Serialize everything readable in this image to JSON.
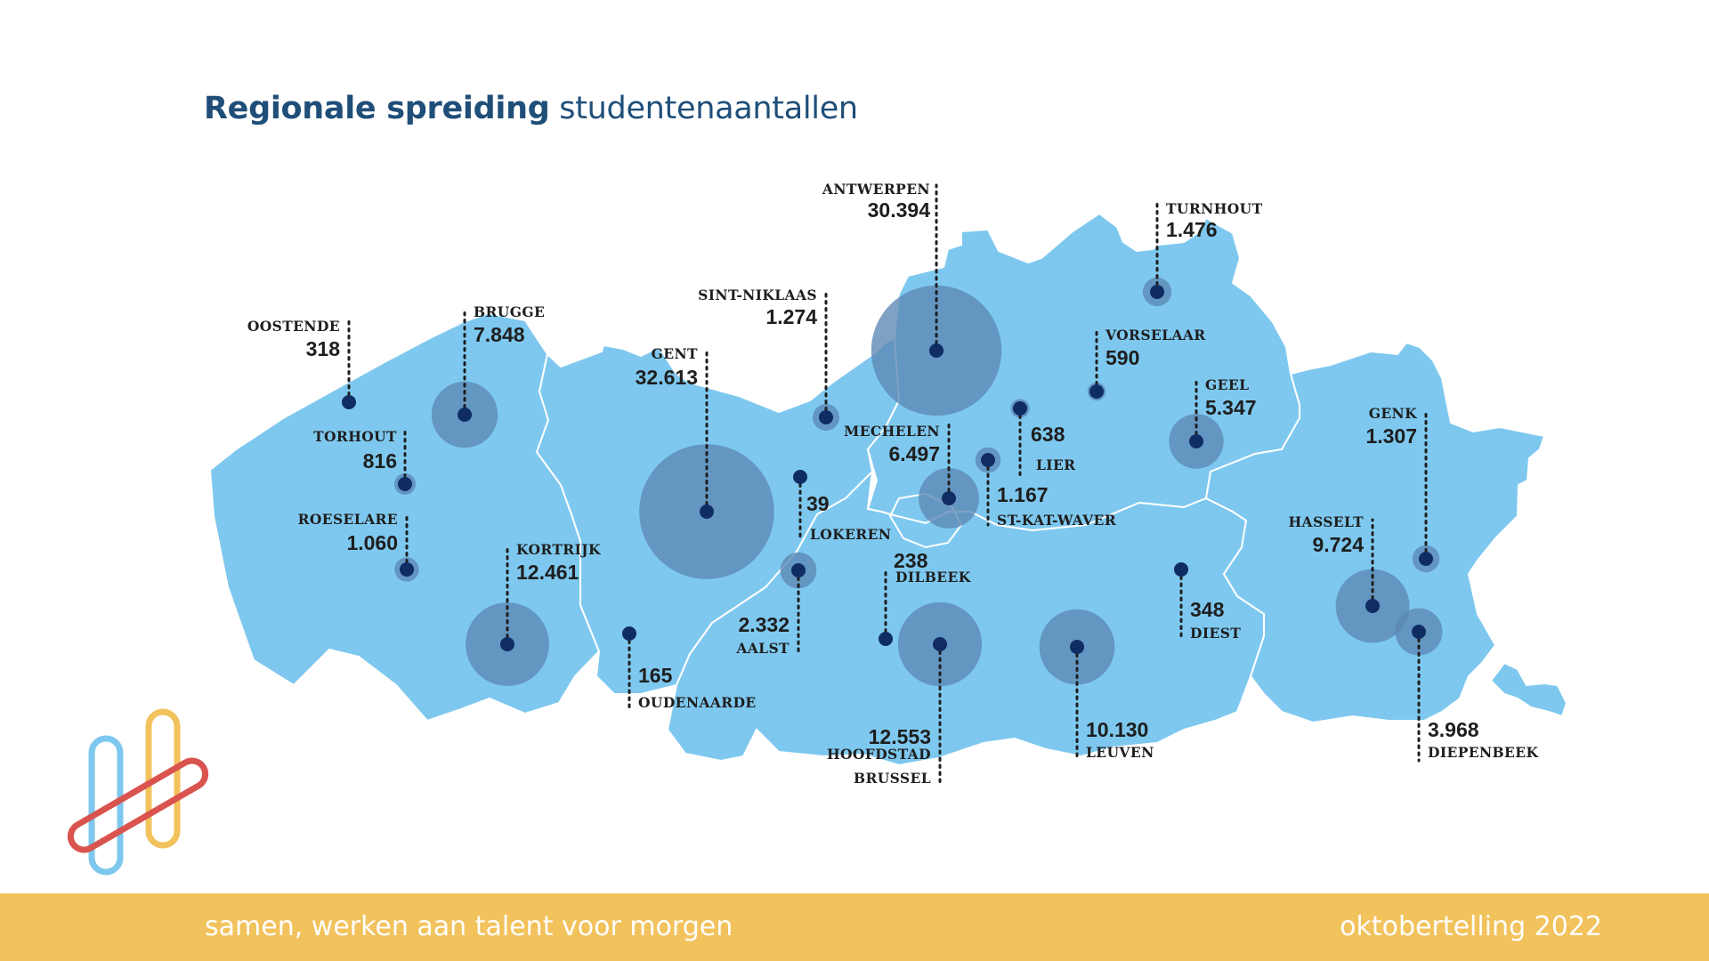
{
  "title": {
    "bold": "Regionale spreiding",
    "rest": "studentenaantallen"
  },
  "footer": {
    "left": "samen, werken aan talent voor morgen",
    "right": "oktobertelling 2022"
  },
  "colors": {
    "land": "#7ec8ef",
    "border": "#ffffff",
    "bubble": "#5b88b4",
    "dot": "#0f2d63",
    "title": "#1f4e79",
    "footer": "#f2c25c"
  },
  "locations": [
    {
      "id": "antwerpen",
      "name": "ANTWERPEN",
      "value": "30.394",
      "students": 30394
    },
    {
      "id": "turnhout",
      "name": "TURNHOUT",
      "value": "1.476",
      "students": 1476
    },
    {
      "id": "sint-niklaas",
      "name": "SINT-NIKLAAS",
      "value": "1.274",
      "students": 1274
    },
    {
      "id": "oostende",
      "name": "OOSTENDE",
      "value": "318",
      "students": 318
    },
    {
      "id": "brugge",
      "name": "BRUGGE",
      "value": "7.848",
      "students": 7848
    },
    {
      "id": "gent",
      "name": "GENT",
      "value": "32.613",
      "students": 32613
    },
    {
      "id": "vorselaar",
      "name": "VORSELAAR",
      "value": "590",
      "students": 590
    },
    {
      "id": "geel",
      "name": "GEEL",
      "value": "5.347",
      "students": 5347
    },
    {
      "id": "genk",
      "name": "GENK",
      "value": "1.307",
      "students": 1307
    },
    {
      "id": "torhout",
      "name": "TORHOUT",
      "value": "816",
      "students": 816
    },
    {
      "id": "mechelen",
      "name": "MECHELEN",
      "value": "6.497",
      "students": 6497
    },
    {
      "id": "lier",
      "name": "LIER",
      "value": "638",
      "students": 638
    },
    {
      "id": "lokeren",
      "name": "LOKEREN",
      "value": "39",
      "students": 39
    },
    {
      "id": "st-kat-waver",
      "name": "ST-KAT-WAVER",
      "value": "1.167",
      "students": 1167
    },
    {
      "id": "roeselare",
      "name": "ROESELARE",
      "value": "1.060",
      "students": 1060
    },
    {
      "id": "kortrijk",
      "name": "KORTRIJK",
      "value": "12.461",
      "students": 12461
    },
    {
      "id": "hasselt",
      "name": "HASSELT",
      "value": "9.724",
      "students": 9724
    },
    {
      "id": "dilbeek",
      "name": "DILBEEK",
      "value": "238",
      "students": 238
    },
    {
      "id": "aalst",
      "name": "AALST",
      "value": "2.332",
      "students": 2332
    },
    {
      "id": "diest",
      "name": "DIEST",
      "value": "348",
      "students": 348
    },
    {
      "id": "oudenaarde",
      "name": "OUDENAARDE",
      "value": "165",
      "students": 165
    },
    {
      "id": "hoofdstad-brussel",
      "name": "HOOFDSTAD",
      "name2": "BRUSSEL",
      "value": "12.553",
      "students": 12553
    },
    {
      "id": "leuven",
      "name": "LEUVEN",
      "value": "10.130",
      "students": 10130
    },
    {
      "id": "diepenbeek",
      "name": "DIEPENBEEK",
      "value": "3.968",
      "students": 3968
    }
  ]
}
